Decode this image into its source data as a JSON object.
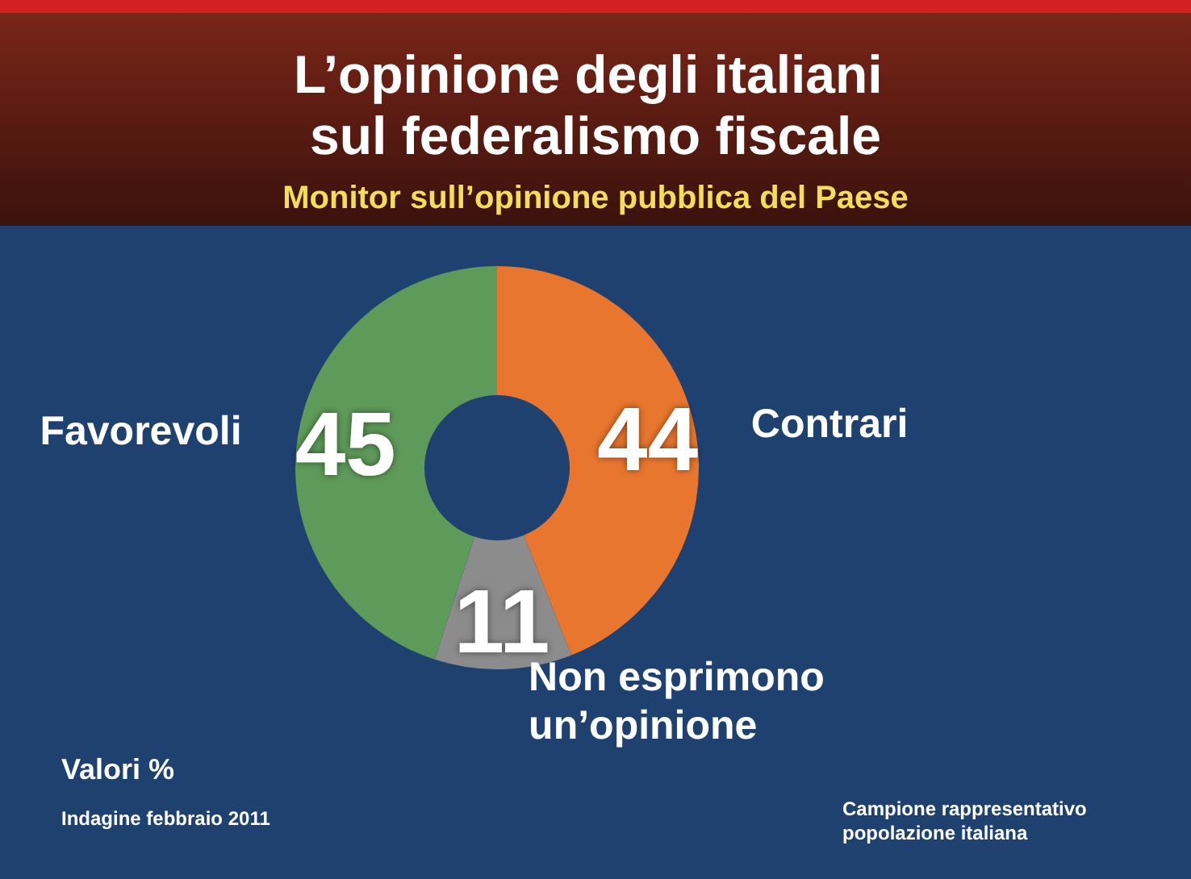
{
  "chart_data": {
    "type": "donut",
    "title": "L’opinione degli italiani sul federalismo fiscale",
    "subtitle": "Monitor sull’opinione pubblica del Paese",
    "categories": [
      "Contrari",
      "Non esprimono un’opinione",
      "Favorevoli"
    ],
    "values": [
      44,
      11,
      45
    ],
    "colors": [
      "#e8762e",
      "#8c8c8c",
      "#5e9a59"
    ],
    "data_labels": true,
    "legend": false,
    "annotations": [
      "Valori %",
      "Indagine febbraio 2011",
      "Campione rappresentativo popolazione italiana"
    ]
  }
}
